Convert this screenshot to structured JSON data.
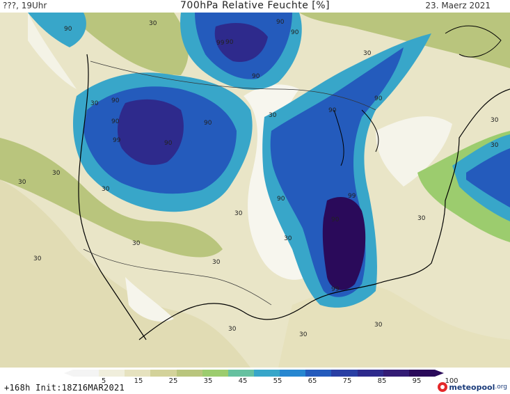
{
  "header": {
    "left": "???, 19Uhr",
    "title": "700hPa Relative Feuchte [%]",
    "right": "23. Maerz 2021"
  },
  "map": {
    "contour_labels": [
      "90",
      "30",
      "90",
      "99",
      "90",
      "90",
      "90",
      "30",
      "90",
      "90",
      "99",
      "90",
      "30",
      "90",
      "30",
      "90",
      "30",
      "30",
      "90",
      "30",
      "99",
      "30",
      "90",
      "30",
      "30",
      "30",
      "30",
      "30",
      "30",
      "30",
      "99",
      "30",
      "30",
      "30",
      "90"
    ]
  },
  "colorbar": {
    "colors": [
      "#f4f4f4",
      "#f0eedc",
      "#e6e2bf",
      "#d3d29a",
      "#b9c57d",
      "#9ccc6e",
      "#66c1a0",
      "#38a6c9",
      "#2787d0",
      "#245bbc",
      "#2a3fa4",
      "#2e2a8c",
      "#341c75",
      "#2a0a5a"
    ],
    "tick_labels": [
      "5",
      "15",
      "25",
      "35",
      "45",
      "55",
      "65",
      "75",
      "85",
      "95",
      "100"
    ]
  },
  "footer": {
    "run_info": "+168h  Init:18Z16MAR2021",
    "logo_text": "meteopool",
    "logo_tld": ".org"
  }
}
